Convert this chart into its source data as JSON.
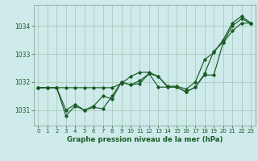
{
  "title": "Graphe pression niveau de la mer (hPa)",
  "background_color": "#ceeaea",
  "grid_color": "#aaccbb",
  "line_color": "#1a5c28",
  "text_color": "#1a5c28",
  "xlim": [
    -0.5,
    23.5
  ],
  "ylim": [
    1030.45,
    1034.75
  ],
  "yticks": [
    1031,
    1032,
    1033,
    1034
  ],
  "xticks": [
    0,
    1,
    2,
    3,
    4,
    5,
    6,
    7,
    8,
    9,
    10,
    11,
    12,
    13,
    14,
    15,
    16,
    17,
    18,
    19,
    20,
    21,
    22,
    23
  ],
  "series": [
    [
      1031.8,
      1031.8,
      1031.8,
      1031.8,
      1031.8,
      1031.8,
      1031.8,
      1031.8,
      1031.8,
      1031.95,
      1032.2,
      1032.35,
      1032.35,
      1032.2,
      1031.85,
      1031.85,
      1031.75,
      1032.0,
      1032.8,
      1033.05,
      1033.5,
      1034.1,
      1034.35,
      1034.1
    ],
    [
      1031.8,
      1031.8,
      1031.8,
      1031.0,
      1031.2,
      1031.0,
      1031.15,
      1031.5,
      1031.4,
      1032.0,
      1031.9,
      1032.05,
      1032.3,
      1032.2,
      1031.82,
      1031.82,
      1031.65,
      1031.82,
      1032.25,
      1032.25,
      1033.4,
      1033.82,
      1034.1,
      1034.1
    ],
    [
      1031.8,
      1031.8,
      1031.8,
      1030.8,
      1031.15,
      1031.0,
      1031.1,
      1031.05,
      1031.5,
      1032.0,
      1031.9,
      1031.95,
      1032.3,
      1031.82,
      1031.82,
      1031.82,
      1031.65,
      1031.82,
      1032.3,
      1033.1,
      1033.42,
      1034.0,
      1034.25,
      1034.1
    ]
  ]
}
